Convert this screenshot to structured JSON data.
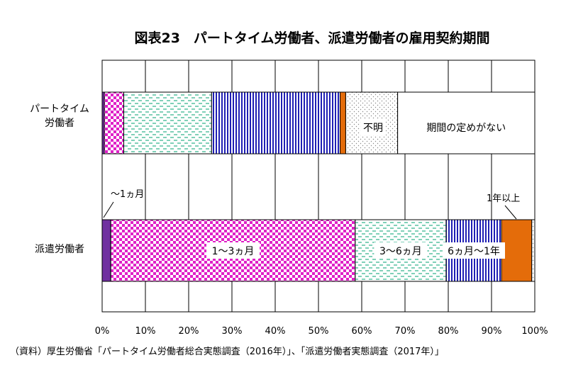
{
  "chart_data": {
    "type": "bar",
    "orientation": "horizontal",
    "stacked": true,
    "title": "図表23　パートタイム労働者、派遣労働者の雇用契約期間",
    "categories": [
      "パートタイム\n労働者",
      "派遣労働者"
    ],
    "series": [
      {
        "name": "～1ヵ月",
        "values": [
          0.5,
          2.0
        ],
        "color": "#7030a0",
        "pattern": "solid"
      },
      {
        "name": "1～3ヵ月",
        "values": [
          4.5,
          56.5
        ],
        "color": "#e020c8",
        "pattern": "checker"
      },
      {
        "name": "3～6ヵ月",
        "values": [
          20.3,
          21.0
        ],
        "color": "#00a070",
        "pattern": "dashes"
      },
      {
        "name": "6ヵ月～1年",
        "values": [
          29.7,
          12.8
        ],
        "color": "#1f1fb4",
        "pattern": "vstripes"
      },
      {
        "name": "1年以上",
        "values": [
          1.3,
          7.0
        ],
        "color": "#e46c0a",
        "pattern": "solid"
      },
      {
        "name": "不明",
        "values": [
          12.0,
          0.7
        ],
        "color": "#c8c8c8",
        "pattern": "dots"
      },
      {
        "name": "期間の定めがない",
        "values": [
          31.7,
          0
        ],
        "color": "#ffffff",
        "pattern": "none"
      }
    ],
    "xlim": [
      0,
      100
    ],
    "xticks": [
      "0%",
      "10%",
      "20%",
      "30%",
      "40%",
      "50%",
      "60%",
      "70%",
      "80%",
      "90%",
      "100%"
    ],
    "grid": true,
    "legend": "none",
    "in_bar_labels": {
      "row0": [
        "不明",
        "期間の定めがない"
      ],
      "row1": [
        "1～3ヵ月",
        "3～6ヵ月",
        "6ヵ月～1年"
      ]
    },
    "callouts": [
      "～1ヵ月",
      "1年以上"
    ]
  },
  "source": "（資料）厚生労働省「パートタイム労働者総合実態調査（2016年）」、「派遣労働者実態調査（2017年）」"
}
